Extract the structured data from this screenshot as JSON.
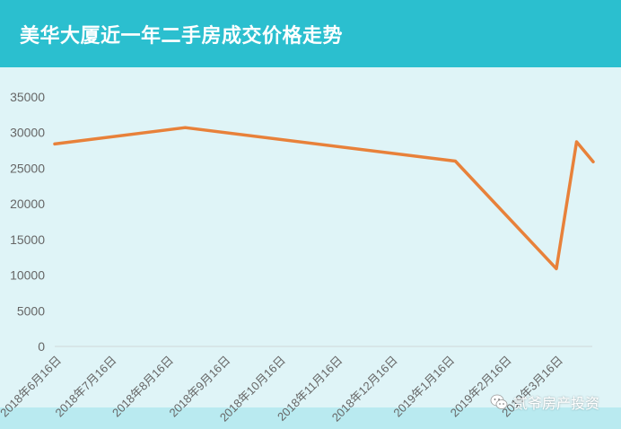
{
  "header": {
    "title": "美华大厦近一年二手房成交价格走势"
  },
  "watermark": {
    "text": "贰爷房产投资",
    "icon": "wechat-chat-icon"
  },
  "colors": {
    "header": "#2bbfcf",
    "background": "#dff4f7",
    "line": "#e8813a",
    "axis_text": "#666666"
  },
  "chart_data": {
    "type": "line",
    "title": "美华大厦近一年二手房成交价格走势",
    "xlabel": "",
    "ylabel": "",
    "ylim": [
      0,
      35000
    ],
    "yticks": [
      0,
      5000,
      10000,
      15000,
      20000,
      25000,
      30000,
      35000
    ],
    "grid": false,
    "legend": "none",
    "categories": [
      "2018年6月16日",
      "2018年7月16日",
      "2018年8月16日",
      "2018年9月16日",
      "2018年10月16日",
      "2018年11月16日",
      "2018年12月16日",
      "2019年1月16日",
      "2019年2月16日",
      "2019年3月16日"
    ],
    "series": [
      {
        "points": [
          {
            "x": "2018-06-16",
            "y": 28400
          },
          {
            "x": "2018-08-26",
            "y": 30700
          },
          {
            "x": "2019-01-20",
            "y": 26000
          },
          {
            "x": "2019-03-16",
            "y": 10900
          },
          {
            "x": "2019-03-27",
            "y": 28700
          },
          {
            "x": "2019-04-05",
            "y": 25900
          }
        ]
      }
    ]
  }
}
